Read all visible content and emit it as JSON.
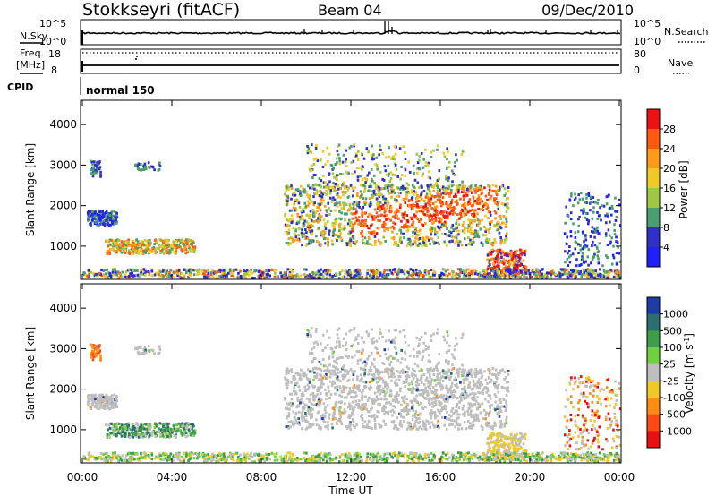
{
  "header": {
    "station": "Stokkseyri (fitACF)",
    "beam": "Beam 04",
    "date": "09/Dec/2010"
  },
  "side_labels": {
    "nsky": "N.Sky",
    "nsearch": "N.Search",
    "freq": "Freq.",
    "mhz": "[MHz]",
    "cpid": "CPID",
    "nave": "Nave"
  },
  "noise_axis": {
    "top": "10^5",
    "bottom": "10^0",
    "right_top": "10^5",
    "right_bottom": "10^0"
  },
  "freq_axis": {
    "left_ticks": [
      "18",
      "8"
    ],
    "right_ticks": [
      "80",
      "0"
    ]
  },
  "cpid_label": "normal 150",
  "chart_data": [
    {
      "type": "heatmap",
      "name": "power",
      "ylabel": "Slant Range [km]",
      "yticks": [
        1000,
        2000,
        3000,
        4000
      ],
      "ylim": [
        180,
        4600
      ],
      "xlim_hours": [
        0,
        24
      ],
      "colorbar_label": "Power [dB]",
      "colorbar_ticks": [
        "28",
        "24",
        "20",
        "16",
        "12",
        "8",
        "4"
      ],
      "colorbar_colors": [
        "#ee1111",
        "#ff5a10",
        "#ff9a1a",
        "#f0c828",
        "#9fc842",
        "#4a9e6f",
        "#3030c8",
        "#2020ff"
      ],
      "features": [
        {
          "x": [
            14.5,
            14.5
          ],
          "range_km": [
            1500,
            2300
          ],
          "level": "high"
        },
        {
          "x": [
            9,
            19
          ],
          "range_km": [
            900,
            2700
          ],
          "level": "medium"
        },
        {
          "x": [
            0.2,
            1.5
          ],
          "range_km": [
            1500,
            1800
          ],
          "level": "low"
        },
        {
          "x": [
            1,
            5
          ],
          "range_km": [
            800,
            1200
          ],
          "level": "medium"
        },
        {
          "x": [
            18,
            19.5
          ],
          "range_km": [
            300,
            900
          ],
          "level": "high"
        },
        {
          "x": [
            22,
            24
          ],
          "range_km": [
            600,
            2300
          ],
          "level": "low"
        }
      ]
    },
    {
      "type": "heatmap",
      "name": "velocity",
      "ylabel": "Slant Range [km]",
      "yticks": [
        1000,
        2000,
        3000,
        4000
      ],
      "ylim": [
        180,
        4600
      ],
      "xlim_hours": [
        0,
        24
      ],
      "colorbar_label": "Velocity [m s^-1]",
      "colorbar_ticks": [
        "1000",
        "500",
        "100",
        "25",
        "-25",
        "-100",
        "-500",
        "-1000"
      ],
      "colorbar_colors": [
        "#1e3ca8",
        "#2d6e6e",
        "#3c9e46",
        "#6fd23c",
        "#bebebe",
        "#f0c828",
        "#ff8c14",
        "#ff4a14",
        "#e81010"
      ]
    }
  ],
  "x_axis": {
    "label": "Time UT",
    "ticks": [
      "00:00",
      "04:00",
      "08:00",
      "12:00",
      "16:00",
      "20:00",
      "00:00"
    ]
  }
}
